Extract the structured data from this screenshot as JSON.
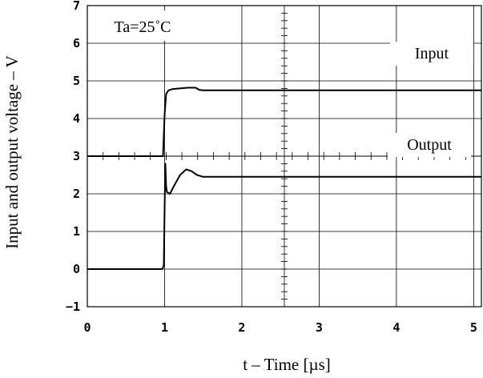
{
  "chart_data": {
    "type": "line",
    "title": "",
    "annotation": "Ta=25˚C",
    "xlabel": "t – Time [µs]",
    "ylabel": "Input and output voltage – V",
    "xlim": [
      0,
      5.1
    ],
    "ylim": [
      -1,
      7
    ],
    "x_ticks": [
      "0",
      "1",
      "2",
      "3",
      "4",
      "5"
    ],
    "y_ticks": [
      "−1",
      "0",
      "1",
      "2",
      "3",
      "4",
      "5",
      "6",
      "7"
    ],
    "grid": true,
    "series": [
      {
        "name": "Input",
        "color": "#000000",
        "points": [
          [
            0,
            3.0
          ],
          [
            0.98,
            3.0
          ],
          [
            1.0,
            4.1
          ],
          [
            1.02,
            4.65
          ],
          [
            1.05,
            4.75
          ],
          [
            1.1,
            4.78
          ],
          [
            1.2,
            4.8
          ],
          [
            1.3,
            4.82
          ],
          [
            1.4,
            4.82
          ],
          [
            1.45,
            4.76
          ],
          [
            1.5,
            4.75
          ],
          [
            2.5,
            4.75
          ],
          [
            5.1,
            4.75
          ]
        ]
      },
      {
        "name": "Output",
        "color": "#000000",
        "points": [
          [
            0,
            0.0
          ],
          [
            0.97,
            0.0
          ],
          [
            0.99,
            0.1
          ],
          [
            1.0,
            1.6
          ],
          [
            1.01,
            2.8
          ],
          [
            1.02,
            2.2
          ],
          [
            1.03,
            2.05
          ],
          [
            1.07,
            2.0
          ],
          [
            1.12,
            2.2
          ],
          [
            1.2,
            2.5
          ],
          [
            1.28,
            2.65
          ],
          [
            1.35,
            2.6
          ],
          [
            1.42,
            2.5
          ],
          [
            1.5,
            2.45
          ],
          [
            1.6,
            2.45
          ],
          [
            2.5,
            2.45
          ],
          [
            5.1,
            2.45
          ]
        ]
      }
    ]
  }
}
